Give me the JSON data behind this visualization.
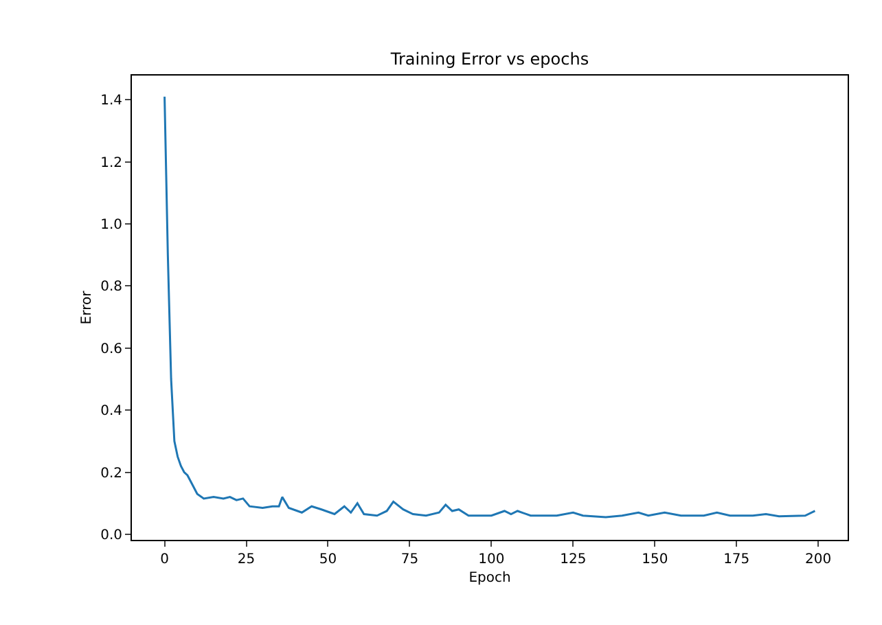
{
  "chart_data": {
    "type": "line",
    "title": "Training Error vs epochs",
    "xlabel": "Epoch",
    "ylabel": "Error",
    "x": [
      0,
      1,
      2,
      3,
      4,
      5,
      6,
      7,
      8,
      10,
      12,
      15,
      18,
      20,
      22,
      24,
      26,
      30,
      33,
      35,
      36,
      38,
      42,
      45,
      48,
      52,
      55,
      57,
      59,
      61,
      65,
      68,
      70,
      73,
      76,
      80,
      84,
      86,
      88,
      90,
      93,
      100,
      104,
      106,
      108,
      112,
      120,
      125,
      128,
      135,
      140,
      145,
      148,
      153,
      158,
      165,
      169,
      173,
      180,
      184,
      188,
      196,
      199
    ],
    "series": [
      {
        "color": "#1f77b4",
        "values": [
          1.41,
          0.9,
          0.5,
          0.3,
          0.25,
          0.22,
          0.2,
          0.19,
          0.17,
          0.13,
          0.115,
          0.12,
          0.115,
          0.12,
          0.11,
          0.115,
          0.09,
          0.085,
          0.09,
          0.09,
          0.12,
          0.085,
          0.07,
          0.09,
          0.08,
          0.065,
          0.09,
          0.07,
          0.1,
          0.065,
          0.06,
          0.075,
          0.105,
          0.08,
          0.065,
          0.06,
          0.07,
          0.095,
          0.075,
          0.08,
          0.06,
          0.06,
          0.075,
          0.065,
          0.075,
          0.06,
          0.06,
          0.07,
          0.06,
          0.055,
          0.06,
          0.07,
          0.06,
          0.07,
          0.06,
          0.06,
          0.07,
          0.06,
          0.06,
          0.065,
          0.058,
          0.06,
          0.075
        ]
      }
    ],
    "xlim": [
      -10,
      209
    ],
    "ylim": [
      -0.018,
      1.478
    ],
    "xticks": [
      0,
      25,
      50,
      75,
      100,
      125,
      150,
      175,
      200
    ],
    "yticks": [
      {
        "value": 0,
        "label": "0.0"
      },
      {
        "value": 0.2,
        "label": "0.2"
      },
      {
        "value": 0.4,
        "label": "0.4"
      },
      {
        "value": 0.6,
        "label": "0.6"
      },
      {
        "value": 0.8,
        "label": "0.8"
      },
      {
        "value": 1.0,
        "label": "1.0"
      },
      {
        "value": 1.2,
        "label": "1.2"
      },
      {
        "value": 1.4,
        "label": "1.4"
      }
    ],
    "marker": "none",
    "line_style": "solid"
  }
}
